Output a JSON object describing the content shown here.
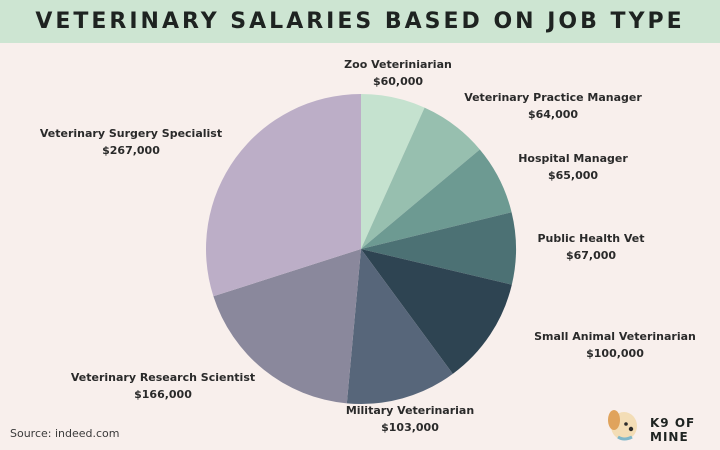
{
  "title": "VETERINARY SALARIES BASED ON JOB TYPE",
  "source": "Source: indeed.com",
  "logo": {
    "text": "K9 OF MINE",
    "icon": "dog-icon"
  },
  "colors": {
    "background": "#f8efec",
    "title_bar": "#cde5d2"
  },
  "chart_data": {
    "type": "pie",
    "title": "VETERINARY SALARIES BASED ON JOB TYPE",
    "slices": [
      {
        "label": "Zoo Veteriniarian",
        "value_label": "$60,000",
        "value": 60000,
        "color": "#c5e2cf"
      },
      {
        "label": "Veterinary Practice Manager",
        "value_label": "$64,000",
        "value": 64000,
        "color": "#97bfaf"
      },
      {
        "label": "Hospital Manager",
        "value_label": "$65,000",
        "value": 65000,
        "color": "#6d9a92"
      },
      {
        "label": "Public Health Vet",
        "value_label": "$67,000",
        "value": 67000,
        "color": "#4c7174"
      },
      {
        "label": "Small Animal Veterinarian",
        "value_label": "$100,000",
        "value": 100000,
        "color": "#2e4452"
      },
      {
        "label": "Military Veterinarian",
        "value_label": "$103,000",
        "value": 103000,
        "color": "#57667a"
      },
      {
        "label": "Veterinary Research Scientist",
        "value_label": "$166,000",
        "value": 166000,
        "color": "#8a889c"
      },
      {
        "label": "Veterinary Surgery Specialist",
        "value_label": "$267,000",
        "value": 267000,
        "color": "#bcaec7"
      }
    ],
    "start_angle": "top",
    "direction": "clockwise"
  }
}
